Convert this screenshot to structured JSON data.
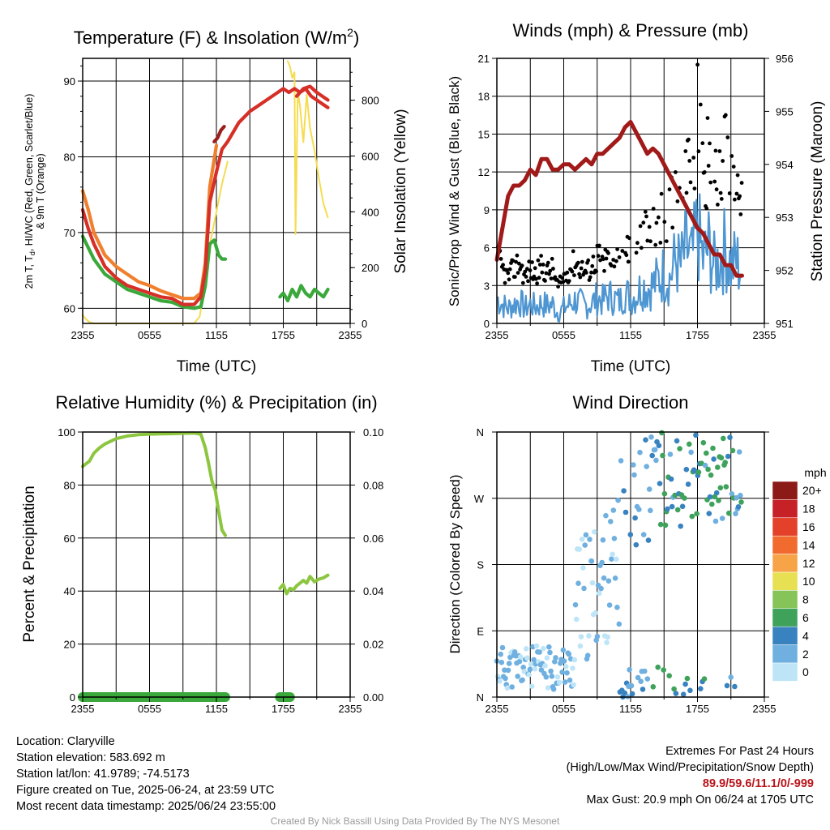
{
  "chart_data": [
    {
      "type": "line",
      "title": "Temperature (F) & Insolation (W/m²)",
      "xlabel": "Time (UTC)",
      "ylabel": "2m T, Td, HI/WC (Red, Green, Scarlet/Blue) & 9m T (Orange)",
      "y2label": "Solar Insolation (Yellow)",
      "x_ticks": [
        "2355",
        "0555",
        "1155",
        "1755",
        "2355"
      ],
      "ylim": [
        58,
        93
      ],
      "y_ticks": [
        60,
        70,
        80,
        90
      ],
      "y2lim": [
        0,
        950
      ],
      "y2_ticks": [
        0,
        200,
        400,
        600,
        800
      ],
      "x_hours_ticks": [
        0,
        6,
        12,
        18,
        24
      ],
      "series": [
        {
          "color": "#f07f2e",
          "axis": "y",
          "x": [
            0.0,
            0.5,
            1,
            2,
            3,
            4,
            5,
            6,
            7,
            8,
            9,
            10,
            10.6,
            11,
            11.4,
            12.0
          ],
          "values": [
            75.5,
            73,
            70,
            67,
            65.5,
            64.5,
            63.5,
            63,
            62.3,
            61.8,
            61.3,
            61.3,
            62,
            66,
            76,
            81.5
          ]
        },
        {
          "color": "#d62f27",
          "axis": "y",
          "x": [
            0.0,
            0.5,
            1,
            2,
            3,
            4,
            5,
            6,
            7,
            8,
            9,
            10,
            10.6,
            11,
            11.4,
            12.0,
            12.5,
            13,
            14,
            15,
            16,
            17,
            18,
            18.5,
            19,
            19.5,
            20,
            20.5,
            21,
            21.5,
            22.0
          ],
          "values": [
            73,
            70.5,
            68.5,
            65.5,
            64,
            63,
            62.5,
            62,
            61.5,
            61.3,
            60.5,
            60.5,
            61.5,
            65,
            74,
            78,
            81,
            82,
            84.5,
            86,
            87,
            88,
            89,
            88.5,
            89,
            88.5,
            89,
            88,
            87.5,
            87,
            86.5
          ]
        },
        {
          "color": "#d62f27",
          "axis": "y",
          "x": [
            19.2,
            19.8,
            20.4,
            21,
            21.5,
            22.0
          ],
          "values": [
            88,
            89,
            89.3,
            88.5,
            88,
            87.5
          ],
          "note": "orange/scarlet overlap late day"
        },
        {
          "color": "#9a1f1c",
          "axis": "y",
          "x": [
            11.8,
            12.1,
            12.4,
            12.7
          ],
          "values": [
            82,
            82.5,
            83.5,
            84
          ]
        },
        {
          "color": "#3aa83a",
          "axis": "y",
          "x": [
            0.0,
            0.5,
            1,
            2,
            3,
            4,
            5,
            6,
            7,
            8,
            9,
            10,
            10.6,
            11,
            11.4,
            11.8,
            12.2,
            12.5,
            12.8
          ],
          "values": [
            69.5,
            68,
            66.5,
            64.5,
            63.5,
            62.5,
            62,
            61.5,
            61,
            60.8,
            60.2,
            60,
            60.2,
            63,
            68.5,
            69,
            67,
            66.5,
            66.5
          ]
        },
        {
          "color": "#3aa83a",
          "axis": "y",
          "x": [
            17.7,
            18,
            18.4,
            18.8,
            19.2,
            19.6,
            20,
            20.4,
            20.8,
            21.2,
            21.6,
            22.0
          ],
          "values": [
            61.5,
            62,
            61,
            62.5,
            61.5,
            63,
            62,
            61.5,
            62.5,
            62,
            61.5,
            62.5
          ]
        },
        {
          "color": "#f5dc50",
          "axis": "y2",
          "x": [
            0.0,
            0.3,
            0.6,
            1,
            3,
            6,
            8,
            9,
            10,
            10.5,
            11,
            11.5,
            12,
            12.5,
            13.0
          ],
          "values": [
            30,
            15,
            5,
            0,
            0,
            0,
            0,
            0,
            0,
            25,
            150,
            300,
            400,
            500,
            580
          ]
        },
        {
          "color": "#f5dc50",
          "axis": "y2",
          "x": [
            18.4,
            18.6,
            18.8,
            19.0,
            19.1,
            19.3,
            19.5,
            19.8,
            20.1,
            20.4,
            20.8,
            21.2,
            21.6,
            22.0
          ],
          "values": [
            940,
            920,
            880,
            900,
            320,
            830,
            780,
            650,
            820,
            700,
            620,
            520,
            430,
            380
          ]
        }
      ]
    },
    {
      "type": "line",
      "title": "Winds (mph) & Pressure (mb)",
      "xlabel": "Time (UTC)",
      "ylabel": "Sonic/Prop Wind & Gust (Blue, Black)",
      "y2label": "Station Pressure (Maroon)",
      "x_ticks": [
        "2355",
        "0555",
        "1155",
        "1755",
        "2355"
      ],
      "ylim": [
        0,
        21
      ],
      "y_ticks": [
        0,
        3,
        6,
        9,
        12,
        15,
        18,
        21
      ],
      "y2lim": [
        951,
        956
      ],
      "y2_ticks": [
        951,
        952,
        953,
        954,
        955,
        956
      ],
      "series": [
        {
          "name": "pressure",
          "color": "#a11a1a",
          "axis": "y2",
          "x": [
            0.0,
            0.5,
            1,
            1.5,
            2,
            2.5,
            3,
            3.5,
            4,
            4.5,
            5,
            5.5,
            6,
            6.5,
            7,
            7.5,
            8,
            8.5,
            9,
            9.5,
            10,
            10.5,
            11,
            11.5,
            12,
            12.5,
            13,
            13.5,
            14,
            14.5,
            15,
            15.5,
            16,
            16.5,
            17,
            17.5,
            18,
            18.5,
            19,
            19.5,
            20,
            20.5,
            21,
            21.5,
            22.0
          ],
          "values": [
            952.2,
            952.8,
            953.4,
            953.6,
            953.6,
            953.7,
            953.9,
            953.8,
            954.1,
            954.1,
            953.9,
            953.9,
            954.0,
            954.0,
            953.9,
            954.0,
            954.1,
            954.0,
            954.2,
            954.2,
            954.3,
            954.4,
            954.5,
            954.7,
            954.8,
            954.6,
            954.4,
            954.2,
            954.3,
            954.2,
            954.0,
            953.8,
            953.6,
            953.4,
            953.2,
            953.0,
            952.8,
            952.7,
            952.5,
            952.3,
            952.3,
            952.1,
            952.1,
            951.9,
            951.9
          ]
        },
        {
          "name": "wind",
          "color": "#4e96d2",
          "axis": "y",
          "x": [
            0.0,
            0.5,
            1,
            1.5,
            2,
            2.5,
            3,
            3.5,
            4,
            4.5,
            5,
            5.5,
            6,
            6.5,
            7,
            7.5,
            8,
            8.5,
            9,
            9.5,
            10,
            10.5,
            11,
            11.5,
            12,
            12.5,
            13,
            13.5,
            14,
            14.5,
            15,
            15.5,
            16,
            16.5,
            17,
            17.5,
            18,
            18.5,
            19,
            19.5,
            20,
            20.5,
            21,
            21.5,
            22.0
          ],
          "values": [
            2,
            1.5,
            1.2,
            1.5,
            1.8,
            1.2,
            1.5,
            1.3,
            1.6,
            1.4,
            1.5,
            0.8,
            1.2,
            1.5,
            1.8,
            1.6,
            1.4,
            1.6,
            2,
            1.8,
            2.2,
            2,
            1.7,
            2.5,
            2,
            2.2,
            3,
            2.8,
            3,
            3.5,
            4,
            3.5,
            5,
            4.5,
            6,
            5,
            7.5,
            5,
            6,
            4.5,
            5,
            6,
            4.5,
            5,
            4
          ]
        }
      ]
    },
    {
      "type": "line",
      "title": "Relative Humidity (%) & Precipitation (in)",
      "xlabel": "",
      "ylabel": "Percent & Precipitation",
      "x_ticks": [
        "2355",
        "0555",
        "1155",
        "1755",
        "2355"
      ],
      "ylim": [
        0,
        100
      ],
      "y_ticks": [
        0,
        20,
        40,
        60,
        80,
        100
      ],
      "y2lim": [
        0,
        0.1
      ],
      "y2_ticks": [
        "0.00",
        "0.02",
        "0.04",
        "0.06",
        "0.08",
        "0.10"
      ],
      "series": [
        {
          "name": "rh",
          "color": "#8cc63f",
          "axis": "y",
          "x": [
            0.0,
            0.3,
            0.6,
            1,
            1.5,
            2,
            3,
            4,
            5,
            6,
            7,
            8,
            9,
            10,
            10.6,
            11,
            11.3,
            11.6,
            11.9,
            12.2,
            12.5,
            12.8
          ],
          "values": [
            87,
            88,
            89,
            92,
            94,
            95.5,
            97.5,
            98.5,
            99,
            99.2,
            99.3,
            99.4,
            99.5,
            99.6,
            99.2,
            94,
            88,
            81.5,
            78,
            70,
            63,
            61
          ]
        },
        {
          "name": "rh",
          "color": "#8cc63f",
          "axis": "y",
          "x": [
            17.7,
            18,
            18.3,
            18.6,
            18.9,
            19.2,
            19.5,
            19.8,
            20.1,
            20.4,
            20.8,
            21.2,
            21.6,
            22.0
          ],
          "values": [
            41,
            42.5,
            39,
            41,
            40.5,
            42,
            43,
            44,
            43,
            45.5,
            43.5,
            44.5,
            45,
            46
          ]
        },
        {
          "name": "precip",
          "color": "#3aa83a",
          "axis": "y",
          "x": [
            0.0,
            12.8
          ],
          "values": [
            0,
            0
          ]
        },
        {
          "name": "precip",
          "color": "#3aa83a",
          "axis": "y",
          "x": [
            17.7,
            18.6
          ],
          "values": [
            0,
            0
          ]
        }
      ]
    },
    {
      "type": "scatter",
      "title": "Wind Direction",
      "ylabel": "Direction (Colored By Speed)",
      "x_ticks": [
        "2355",
        "0555",
        "1155",
        "1755",
        "2355"
      ],
      "y_ticks": [
        "N",
        "E",
        "S",
        "W",
        "N"
      ],
      "legend_title": "mph",
      "legend_labels": [
        "20+",
        "18",
        "16",
        "14",
        "12",
        "10",
        "8",
        "6",
        "4",
        "2",
        "0"
      ],
      "legend_colors": [
        "#8c1a16",
        "#c52127",
        "#e34129",
        "#f16b2f",
        "#f6a447",
        "#e7e052",
        "#86c45a",
        "#3ea25b",
        "#3982c0",
        "#6fb0e0",
        "#bee5f7"
      ]
    }
  ],
  "info_left": [
    "Location: Claryville",
    "Station elevation: 583.692 m",
    "Station lat/lon: 41.9789; -74.5173",
    "Figure created on Tue, 2025-06-24, at 23:59 UTC",
    "Most recent data timestamp: 2025/06/24 23:55:00"
  ],
  "info_right": {
    "line1": "Extremes For Past 24 Hours",
    "line2": "(High/Low/Max Wind/Precipitation/Snow Depth)",
    "extremes": "89.9/59.6/11.1/0/-999",
    "gust": "Max Gust: 20.9 mph On 06/24 at 1705 UTC"
  },
  "credit": "Created By Nick Bassill Using Data Provided By The NYS Mesonet",
  "axis_titles": {
    "temp_title": "Temperature (F) & Insolation (W/m",
    "temp_sup": "2",
    "temp_title_end": ")",
    "temp_ylabel_line1": "2m T, T",
    "temp_ylabel_sub": "d",
    "temp_ylabel_rest": ", HI/WC (Red, Green, Scarlet/Blue)",
    "temp_ylabel_line2": "& 9m T (Orange)"
  }
}
